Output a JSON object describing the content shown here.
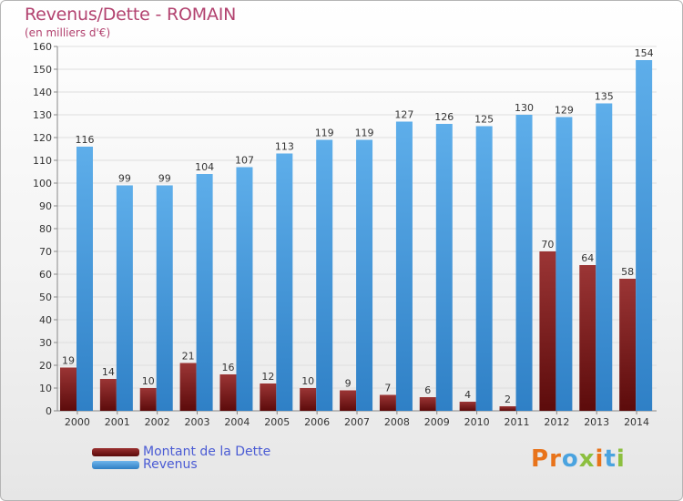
{
  "chart_data": {
    "type": "bar",
    "title": "Revenus/Dette - ROMAIN",
    "subtitle": "(en milliers d'€)",
    "categories": [
      "2000",
      "2001",
      "2002",
      "2003",
      "2004",
      "2005",
      "2006",
      "2007",
      "2008",
      "2009",
      "2010",
      "2011",
      "2012",
      "2013",
      "2014"
    ],
    "series": [
      {
        "name": "Montant de la Dette",
        "color": "#7b1e1e",
        "values": [
          19,
          14,
          10,
          21,
          16,
          12,
          10,
          9,
          7,
          6,
          4,
          2,
          70,
          64,
          58
        ]
      },
      {
        "name": "Revenus",
        "color": "#4d9fdf",
        "values": [
          116,
          99,
          99,
          104,
          107,
          113,
          119,
          119,
          127,
          126,
          125,
          130,
          129,
          135,
          154
        ]
      }
    ],
    "ylim": [
      0,
      160
    ],
    "yticks": [
      0,
      10,
      20,
      30,
      40,
      50,
      60,
      70,
      80,
      90,
      100,
      110,
      120,
      130,
      140,
      150,
      160
    ],
    "grid": true,
    "legend_position": "bottom-left"
  },
  "logo": {
    "letters": [
      "P",
      "r",
      "o",
      "x",
      "i",
      "t",
      "i"
    ],
    "colors": [
      "#e8731a",
      "#e8731a",
      "#4aa3df",
      "#8cbf3f",
      "#e8731a",
      "#4aa3df",
      "#8cbf3f"
    ]
  }
}
